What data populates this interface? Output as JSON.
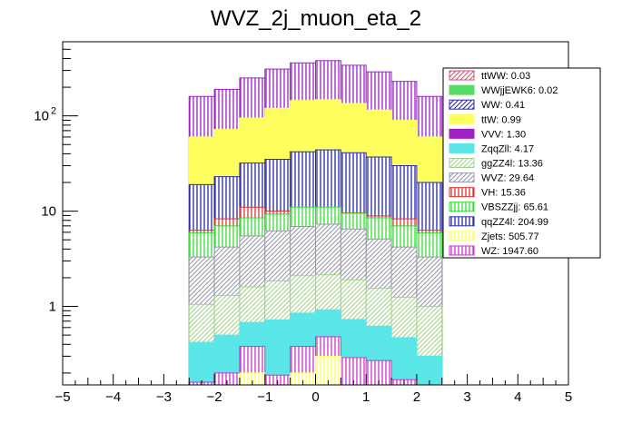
{
  "chart_data": {
    "type": "bar",
    "stacked": true,
    "title": "WVZ_2j_muon_eta_2",
    "xlabel": "",
    "ylabel": "",
    "yscale": "log",
    "xlim": [
      -5,
      5
    ],
    "ylim": [
      0.15,
      600
    ],
    "x_ticks": [
      "−5",
      "−4",
      "−3",
      "−2",
      "−1",
      "0",
      "1",
      "2",
      "3",
      "4",
      "5"
    ],
    "y_ticks": [
      {
        "value": 1,
        "label": "1"
      },
      {
        "value": 10,
        "label": "10"
      },
      {
        "value": 100,
        "label": "10",
        "exp": "2"
      }
    ],
    "bins": [
      -2.5,
      -2.0,
      -1.5,
      -1.0,
      -0.5,
      0.0,
      0.5,
      1.0,
      1.5,
      2.0,
      2.5
    ],
    "cumulative_series": [
      {
        "name": "Zjets",
        "color": "#ffff60",
        "pattern": "vertical",
        "values": [
          0.05,
          0.05,
          0.2,
          0.05,
          0.2,
          0.3,
          0.05,
          0.05,
          0.05,
          0.05
        ]
      },
      {
        "name": "WZ",
        "color": "#cc33cc",
        "pattern": "vertical",
        "values": [
          0.16,
          0.2,
          0.38,
          0.19,
          0.38,
          0.48,
          0.29,
          0.27,
          0.17,
          0.15
        ]
      },
      {
        "name": "ZqqZll",
        "color": "#5ae6e6",
        "pattern": "fill",
        "values": [
          0.42,
          0.5,
          0.68,
          0.72,
          0.85,
          0.92,
          0.73,
          0.62,
          0.47,
          0.3
        ]
      },
      {
        "name": "ggZZ4l",
        "color": "#a4d28c",
        "pattern": "diagonal",
        "values": [
          1.05,
          1.3,
          1.6,
          1.85,
          2.1,
          2.15,
          1.9,
          1.55,
          1.25,
          1.0
        ]
      },
      {
        "name": "WVZ",
        "color": "#9999aa",
        "pattern": "diagonal",
        "values": [
          3.3,
          4.2,
          5.5,
          6.2,
          6.9,
          7.3,
          6.5,
          5.1,
          4.2,
          3.3
        ]
      },
      {
        "name": "VBSZZjj",
        "color": "#33dd33",
        "pattern": "vertical",
        "values": [
          5.9,
          7.0,
          8.5,
          9.3,
          11.0,
          11.0,
          9.5,
          8.5,
          7.0,
          5.9
        ]
      },
      {
        "name": "VH",
        "color": "#dd3333",
        "pattern": "vertical",
        "values": [
          6.3,
          8.3,
          11.0,
          10.0,
          10.8,
          10.6,
          9.6,
          8.9,
          8.3,
          6.3
        ]
      },
      {
        "name": "qqZZ4l",
        "color": "#2a2aa8",
        "pattern": "vertical",
        "values": [
          19,
          23,
          32,
          35,
          42,
          44,
          41,
          37,
          30,
          20
        ]
      },
      {
        "name": "ttW",
        "color": "#ffff60",
        "pattern": "fill",
        "values": [
          60,
          72,
          95,
          120,
          145,
          148,
          135,
          115,
          90,
          60
        ]
      },
      {
        "name": "VVV",
        "color": "#a020c8",
        "pattern": "vertical",
        "values": [
          160,
          190,
          250,
          310,
          360,
          380,
          340,
          290,
          230,
          160
        ]
      }
    ],
    "legend": {
      "placement": "top-right",
      "entries": [
        {
          "label": "ttWW: 0.03",
          "color": "#cc5577",
          "pattern": "diagonal"
        },
        {
          "label": "WWjjEWK6: 0.02",
          "color": "#55dd66",
          "pattern": "fill"
        },
        {
          "label": "WW: 0.41",
          "color": "#2a2aa8",
          "pattern": "diagonal"
        },
        {
          "label": "ttW: 0.99",
          "color": "#ffff60",
          "pattern": "fill"
        },
        {
          "label": "VVV: 1.30",
          "color": "#a020c8",
          "pattern": "fill"
        },
        {
          "label": "ZqqZll: 4.17",
          "color": "#5ae6e6",
          "pattern": "fill"
        },
        {
          "label": "ggZZ4l: 13.36",
          "color": "#a4d28c",
          "pattern": "diagonal"
        },
        {
          "label": "WVZ: 29.64",
          "color": "#9999aa",
          "pattern": "diagonal"
        },
        {
          "label": "VH: 15.36",
          "color": "#dd3333",
          "pattern": "vertical"
        },
        {
          "label": "VBSZZjj: 65.61",
          "color": "#33dd33",
          "pattern": "vertical"
        },
        {
          "label": "qqZZ4l: 204.99",
          "color": "#2a2aa8",
          "pattern": "vertical"
        },
        {
          "label": "Zjets: 505.77",
          "color": "#ffff60",
          "pattern": "vertical"
        },
        {
          "label": "WZ: 1947.60",
          "color": "#cc33cc",
          "pattern": "vertical"
        }
      ]
    },
    "grid": false
  }
}
